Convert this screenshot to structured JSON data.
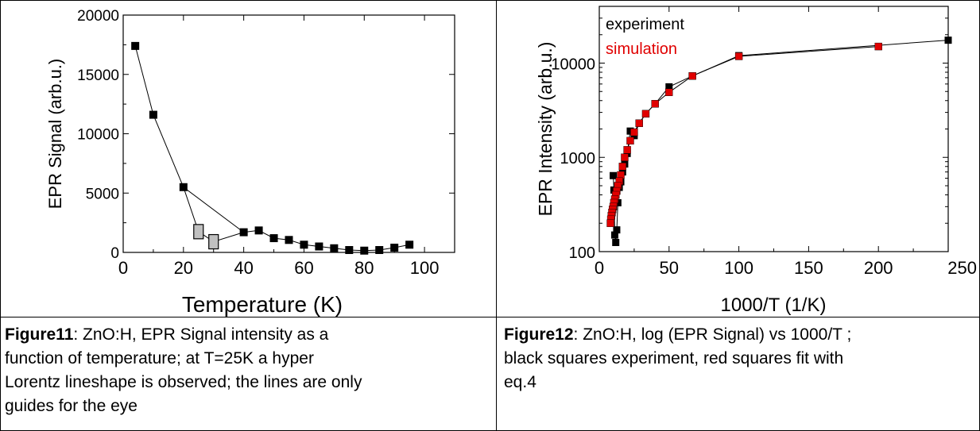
{
  "chart_data": [
    {
      "type": "scatter",
      "xlabel": "Temperature (K)",
      "ylabel": "EPR Signal (arb.u.)",
      "xlim": [
        0,
        110
      ],
      "ylim": [
        0,
        20000
      ],
      "xticks": [
        "0",
        "20",
        "40",
        "60",
        "80",
        "100"
      ],
      "yticks": [
        "0",
        "5000",
        "10000",
        "15000",
        "20000"
      ],
      "xtick_values": [
        0,
        20,
        40,
        60,
        80,
        100
      ],
      "ytick_values": [
        0,
        5000,
        10000,
        15000,
        20000
      ],
      "series": [
        {
          "color": "#000000",
          "x": [
            4,
            10,
            20,
            40,
            45,
            50,
            55,
            60,
            65,
            70,
            75,
            80,
            85,
            90,
            95
          ],
          "y": [
            17400,
            11600,
            5500,
            1700,
            1850,
            1200,
            1050,
            650,
            500,
            350,
            200,
            150,
            200,
            400,
            650
          ],
          "path_order": [
            [
              4,
              17400
            ],
            [
              10,
              11600
            ],
            [
              20,
              5500
            ],
            [
              40,
              1700
            ],
            [
              45,
              1850
            ],
            [
              50,
              1200
            ],
            [
              55,
              1050
            ],
            [
              60,
              650
            ],
            [
              65,
              500
            ],
            [
              70,
              350
            ],
            [
              75,
              200
            ],
            [
              80,
              150
            ],
            [
              85,
              200
            ],
            [
              90,
              400
            ],
            [
              95,
              650
            ]
          ]
        },
        {
          "color": "#c0c0c0",
          "x": [
            25,
            30
          ],
          "y": [
            1750,
            900
          ]
        }
      ],
      "guide_line": [
        [
          20,
          5500
        ],
        [
          25,
          1750
        ],
        [
          30,
          900
        ],
        [
          40,
          1700
        ]
      ],
      "grid": false
    },
    {
      "type": "scatter",
      "xlabel": "1000/T (1/K)",
      "ylabel": "EPR Intensity (arb.u.)",
      "xlim": [
        0,
        250
      ],
      "ylim": [
        100,
        40000
      ],
      "yscale": "log",
      "xticks": [
        "0",
        "50",
        "100",
        "150",
        "200",
        "250"
      ],
      "yticks": [
        "100",
        "1000",
        "10000"
      ],
      "xtick_values": [
        0,
        50,
        100,
        150,
        200,
        250
      ],
      "ytick_values": [
        100,
        1000,
        10000
      ],
      "legend": [
        "experiment",
        "simulation"
      ],
      "legend_colors": [
        "#000000",
        "#e00000"
      ],
      "legend_position": "top-left",
      "series": [
        {
          "name": "experiment",
          "color": "#000000",
          "x": [
            250,
            100,
            66.7,
            50,
            40,
            33.3,
            28.6,
            25,
            22.2,
            20,
            18.2,
            16.7,
            15.4,
            14.3,
            13.3,
            12.5,
            11.8,
            11.1,
            10.5,
            10
          ],
          "y": [
            17500,
            12000,
            7300,
            5600,
            3700,
            2900,
            2300,
            1700,
            1900,
            1100,
            850,
            700,
            550,
            480,
            330,
            170,
            125,
            150,
            450,
            640
          ]
        },
        {
          "name": "simulation",
          "color": "#e00000",
          "x": [
            200,
            100,
            66.7,
            50,
            40,
            33.3,
            28.6,
            25,
            22.2,
            20,
            18.2,
            16.7,
            15.4,
            14.3,
            13.3,
            12.5,
            11.8,
            11.1,
            10.5,
            10,
            9.5,
            9.1,
            8.7,
            8.3,
            8
          ],
          "y": [
            15000,
            11800,
            7300,
            4900,
            3700,
            2900,
            2300,
            1850,
            1500,
            1200,
            1000,
            800,
            650,
            560,
            500,
            440,
            400,
            360,
            330,
            300,
            280,
            260,
            240,
            220,
            200
          ]
        }
      ],
      "grid": false
    }
  ],
  "captions": {
    "fig11_label": "Figure11",
    "fig11_lines": [
      ": ZnO:H, EPR Signal intensity as a",
      "function of temperature; at T=25K a hyper",
      "Lorentz lineshape is observed; the lines are only",
      "guides for the eye"
    ],
    "fig12_label": "Figure12",
    "fig12_lines": [
      ": ZnO:H, log (EPR Signal) vs 1000/T ;",
      "black squares experiment, red squares fit with",
      "eq.4"
    ]
  }
}
